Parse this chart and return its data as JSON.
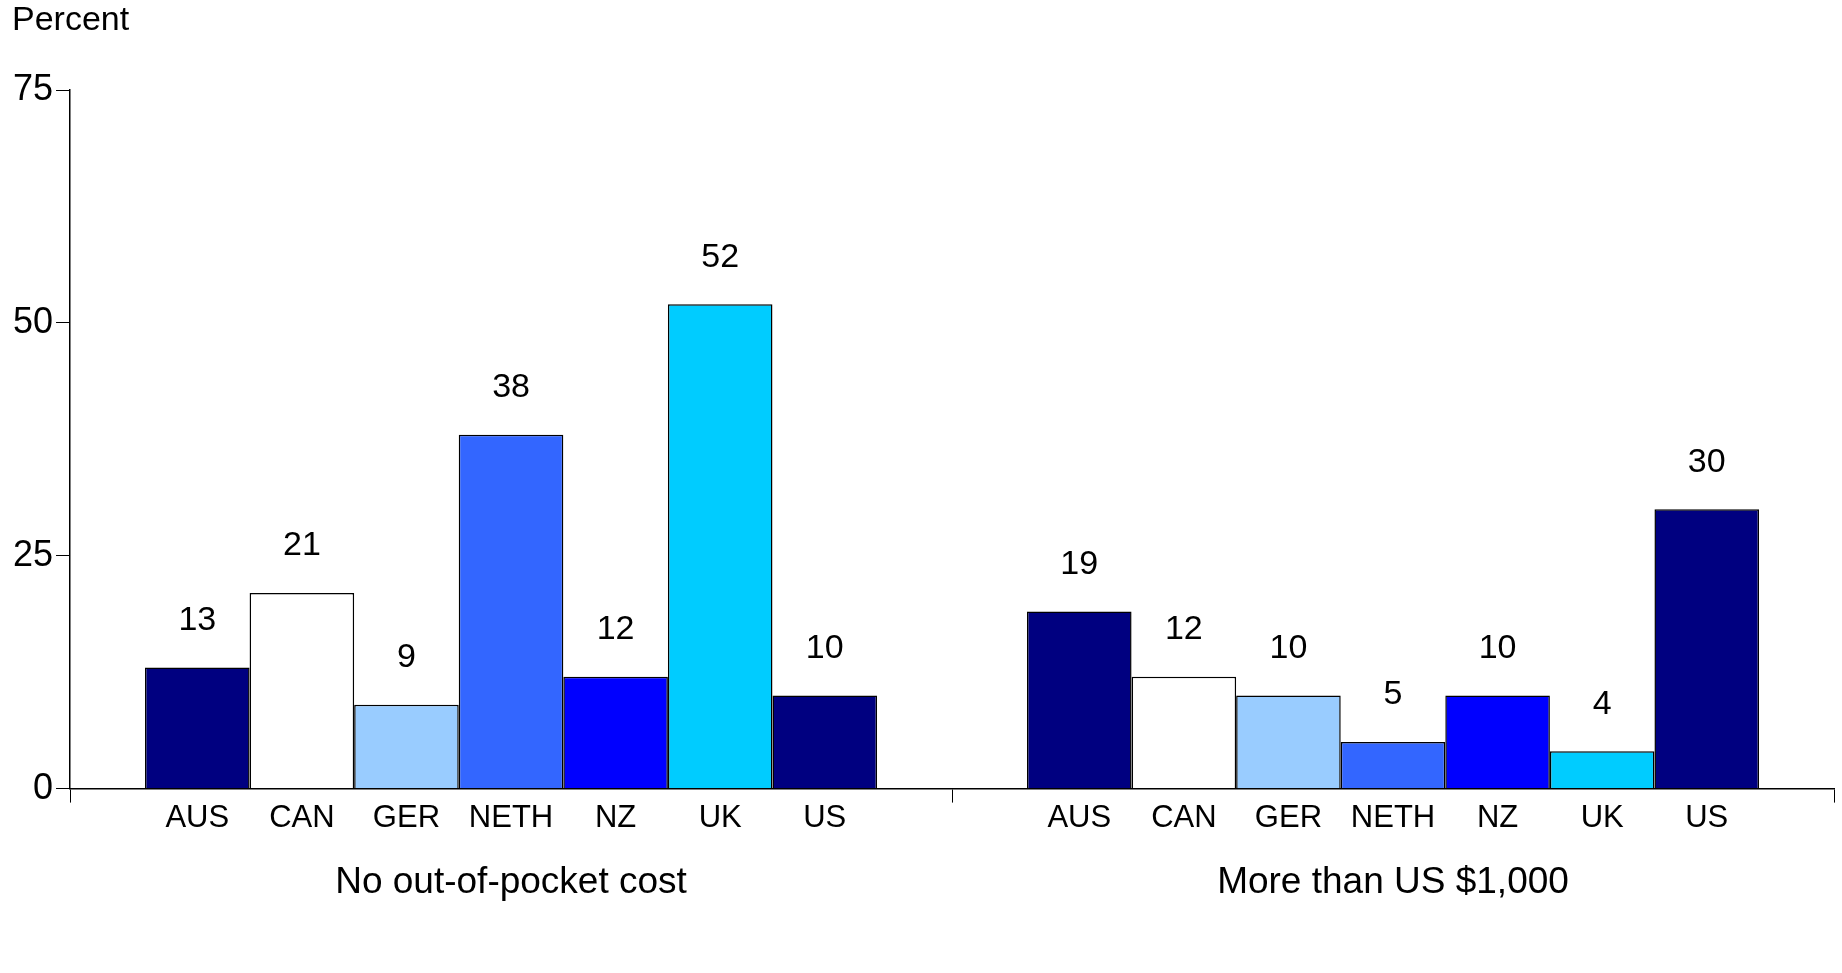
{
  "chart_data": {
    "type": "bar",
    "ylabel": "Percent",
    "categories": [
      "No out-of-pocket cost",
      "More than US $1,000"
    ],
    "series": [
      {
        "name": "AUS",
        "color": "#000080",
        "values": [
          13,
          19
        ]
      },
      {
        "name": "CAN",
        "color": "#ffffff",
        "values": [
          21,
          12
        ]
      },
      {
        "name": "GER",
        "color": "#99ccff",
        "values": [
          9,
          10
        ]
      },
      {
        "name": "NETH",
        "color": "#3366ff",
        "values": [
          38,
          5
        ]
      },
      {
        "name": "NZ",
        "color": "#0000ff",
        "values": [
          12,
          10
        ]
      },
      {
        "name": "UK",
        "color": "#00ccff",
        "values": [
          52,
          4
        ]
      },
      {
        "name": "US",
        "color": "#000080",
        "values": [
          10,
          30
        ]
      }
    ],
    "ylim": [
      0,
      75
    ],
    "yticks": [
      0,
      25,
      50,
      75
    ],
    "data_labels": true,
    "grid": false,
    "legend": false
  }
}
